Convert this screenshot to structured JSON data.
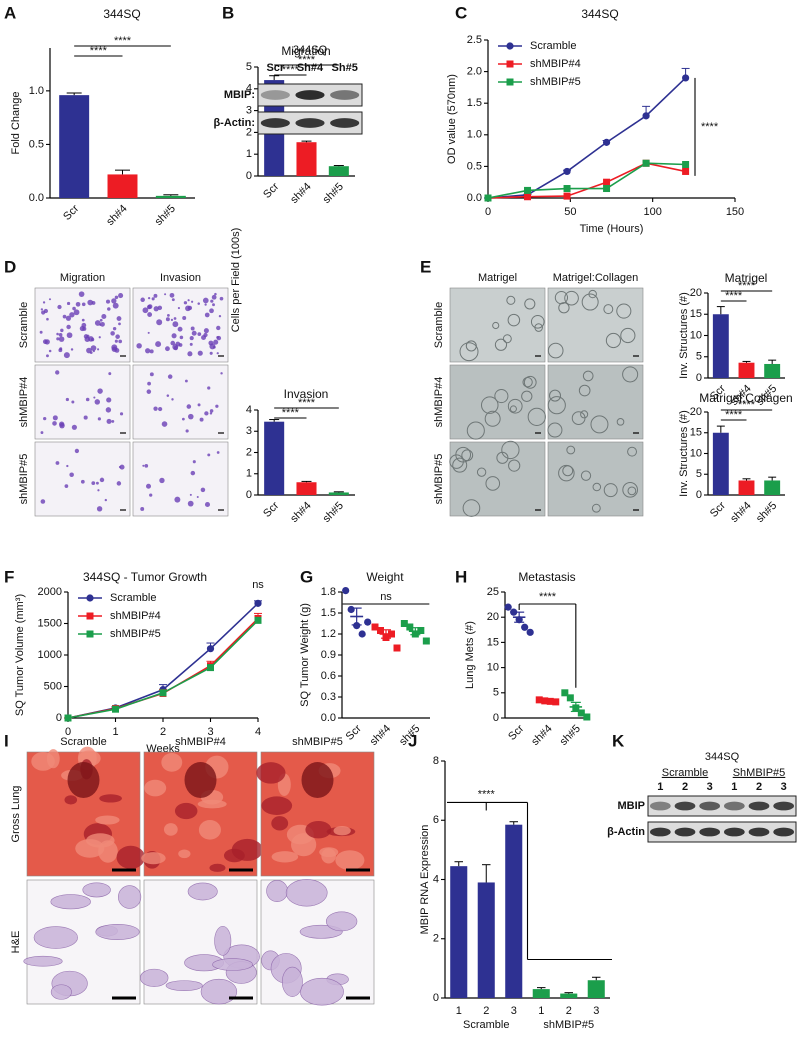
{
  "chart_data": [
    {
      "panel": "A",
      "type": "bar",
      "title": "344SQ",
      "ylabel": "Fold  Change",
      "categories": [
        "Scr",
        "sh#4",
        "sh#5"
      ],
      "values": [
        0.96,
        0.22,
        0.02
      ],
      "errors": [
        0.02,
        0.04,
        0.01
      ],
      "colors": [
        "#2e3192",
        "#ed1c24",
        "#1b9e4b"
      ],
      "ylim": [
        0,
        1.4
      ],
      "yticks": [
        {
          "value": 0,
          "label": "0.0"
        },
        {
          "value": 0.5,
          "label": "0.5"
        },
        {
          "value": 1,
          "label": "1.0"
        }
      ],
      "xtick_rotation": 45,
      "annotations": [
        "****",
        "****"
      ]
    },
    {
      "panel": "C",
      "type": "line",
      "title": "344SQ",
      "xlabel": "Time (Hours)",
      "ylabel": "OD value (570nm)",
      "x": [
        0,
        24,
        48,
        72,
        96,
        120
      ],
      "series": [
        {
          "name": "Scramble",
          "color": "#2e3192",
          "marker": "circle",
          "values": [
            0,
            0.05,
            0.42,
            0.88,
            1.3,
            1.9
          ],
          "errors": [
            0,
            0.01,
            0.02,
            0.03,
            0.15,
            0.15
          ]
        },
        {
          "name": "shMBIP#4",
          "color": "#ed1c24",
          "marker": "square",
          "values": [
            0,
            0.02,
            0.03,
            0.25,
            0.55,
            0.42
          ]
        },
        {
          "name": "shMBIP#5",
          "color": "#1b9e4b",
          "marker": "square",
          "values": [
            0,
            0.12,
            0.15,
            0.15,
            0.55,
            0.53
          ]
        }
      ],
      "xlim": [
        0,
        150
      ],
      "xticks": [
        0,
        50,
        100,
        150
      ],
      "ylim": [
        0,
        2.5
      ],
      "yticks": [
        {
          "value": 0,
          "label": "0.0"
        },
        {
          "value": 0.5,
          "label": "0.5"
        },
        {
          "value": 1,
          "label": "1.0"
        },
        {
          "value": 1.5,
          "label": "1.5"
        },
        {
          "value": 2,
          "label": "2.0"
        },
        {
          "value": 2.5,
          "label": "2.5"
        }
      ],
      "legend": "upper left",
      "annotations": [
        "****"
      ]
    },
    {
      "type": "bar",
      "title": "Migration",
      "ylabel": "Cells per Field (100s)",
      "categories": [
        "Scr",
        "sh#4",
        "sh#5"
      ],
      "values": [
        4.4,
        1.55,
        0.45
      ],
      "errors": [
        0.2,
        0.05,
        0.03
      ],
      "colors": [
        "#2e3192",
        "#ed1c24",
        "#1b9e4b"
      ],
      "ylim": [
        0,
        5
      ],
      "yticks": [
        0,
        1,
        2,
        3,
        4,
        5
      ],
      "xtick_rotation": 45,
      "annotations": [
        "****",
        "****"
      ]
    },
    {
      "type": "bar",
      "title": "Invasion",
      "categories": [
        "Scr",
        "sh#4",
        "sh#5"
      ],
      "values": [
        3.45,
        0.6,
        0.12
      ],
      "errors": [
        0.1,
        0.04,
        0.03
      ],
      "colors": [
        "#2e3192",
        "#ed1c24",
        "#1b9e4b"
      ],
      "ylim": [
        0,
        4
      ],
      "yticks": [
        0,
        1,
        2,
        3,
        4
      ],
      "xtick_rotation": 45,
      "annotations": [
        "****",
        "****"
      ]
    },
    {
      "type": "bar",
      "title": "Matrigel",
      "ylabel": "Inv.  Structures (#)",
      "categories": [
        "Scr",
        "sh#4",
        "sh#5"
      ],
      "values": [
        15,
        3.6,
        3.3
      ],
      "errors": [
        1.8,
        0.3,
        0.9
      ],
      "colors": [
        "#2e3192",
        "#ed1c24",
        "#1b9e4b"
      ],
      "ylim": [
        0,
        20
      ],
      "yticks": [
        0,
        5,
        10,
        15,
        20
      ],
      "xtick_rotation": 45,
      "annotations": [
        "****",
        "****"
      ]
    },
    {
      "type": "bar",
      "title": "Matrigel:Collagen",
      "ylabel": "Inv.  Structures (#)",
      "categories": [
        "Scr",
        "sh#4",
        "sh#5"
      ],
      "values": [
        15,
        3.5,
        3.5
      ],
      "errors": [
        1.6,
        0.4,
        0.8
      ],
      "colors": [
        "#2e3192",
        "#ed1c24",
        "#1b9e4b"
      ],
      "ylim": [
        0,
        20
      ],
      "yticks": [
        0,
        5,
        10,
        15,
        20
      ],
      "xtick_rotation": 45,
      "annotations": [
        "****",
        "****"
      ]
    },
    {
      "panel": "F",
      "type": "line",
      "title": "344SQ - Tumor Growth",
      "xlabel": "Weeks",
      "ylabel": "SQ Tumor Volume  (mm³)",
      "x": [
        0,
        1,
        2,
        3,
        4
      ],
      "series": [
        {
          "name": "Scramble",
          "color": "#2e3192",
          "marker": "circle",
          "values": [
            0,
            160,
            450,
            1100,
            1820
          ],
          "errors": [
            0,
            20,
            80,
            90,
            40
          ]
        },
        {
          "name": "shMBIP#4",
          "color": "#ed1c24",
          "marker": "square",
          "values": [
            0,
            150,
            390,
            830,
            1580
          ],
          "errors": [
            0,
            20,
            60,
            70,
            80
          ]
        },
        {
          "name": "shMBIP#5",
          "color": "#1b9e4b",
          "marker": "square",
          "values": [
            0,
            140,
            400,
            800,
            1550
          ]
        }
      ],
      "xlim": [
        0,
        4
      ],
      "xticks": [
        0,
        1,
        2,
        3,
        4
      ],
      "ylim": [
        0,
        2000
      ],
      "yticks": [
        0,
        500,
        1000,
        1500,
        2000
      ],
      "legend": "upper left",
      "annotations": [
        "ns"
      ]
    },
    {
      "panel": "G",
      "type": "dot",
      "title": "Weight",
      "ylabel": "SQ Tumor Weight (g)",
      "categories": [
        "Scr",
        "sh#4",
        "sh#5"
      ],
      "points": [
        [
          1.82,
          1.55,
          1.32,
          1.2,
          1.37
        ],
        [
          1.3,
          1.25,
          1.15,
          1.2,
          1.0
        ],
        [
          1.35,
          1.3,
          1.2,
          1.25,
          1.1
        ]
      ],
      "means": [
        1.45,
        1.2,
        1.24
      ],
      "errors": [
        0.12,
        0.06,
        0.05
      ],
      "colors": [
        "#2e3192",
        "#ed1c24",
        "#1b9e4b"
      ],
      "markers": [
        "circle",
        "square",
        "square"
      ],
      "ylim": [
        0,
        1.8
      ],
      "yticks": [
        {
          "value": 0,
          "label": "0.0"
        },
        {
          "value": 0.3,
          "label": "0.3"
        },
        {
          "value": 0.6,
          "label": "0.6"
        },
        {
          "value": 0.9,
          "label": "0.9"
        },
        {
          "value": 1.2,
          "label": "1.2"
        },
        {
          "value": 1.5,
          "label": "1.5"
        },
        {
          "value": 1.8,
          "label": "1.8"
        }
      ],
      "xtick_rotation": 45,
      "annotations": [
        "ns"
      ]
    },
    {
      "panel": "H",
      "type": "dot",
      "title": "Metastasis",
      "ylabel": "Lung  Mets (#)",
      "categories": [
        "Scr",
        "sh#4",
        "sh#5"
      ],
      "points": [
        [
          22,
          21,
          19.5,
          18,
          17
        ],
        [
          3.6,
          3.4,
          3.3,
          3.2
        ],
        [
          5,
          4,
          2,
          1,
          0.2
        ]
      ],
      "means": [
        20,
        3.4,
        2.2
      ],
      "errors": [
        1,
        0.15,
        0.9
      ],
      "colors": [
        "#2e3192",
        "#ed1c24",
        "#1b9e4b"
      ],
      "markers": [
        "circle",
        "square",
        "square"
      ],
      "ylim": [
        0,
        25
      ],
      "yticks": [
        0,
        5,
        10,
        15,
        20,
        25
      ],
      "xtick_rotation": 45,
      "annotations": [
        "****"
      ]
    },
    {
      "panel": "J",
      "type": "bar",
      "ylabel": "MBIP RNA Expression",
      "categories": [
        "1",
        "2",
        "3",
        "1",
        "2",
        "3"
      ],
      "group_labels": [
        "Scramble",
        "shMBIP#5"
      ],
      "values": [
        4.45,
        3.9,
        5.85,
        0.3,
        0.15,
        0.6
      ],
      "errors": [
        0.15,
        0.6,
        0.1,
        0.05,
        0.03,
        0.1
      ],
      "colors": [
        "#2e3192",
        "#2e3192",
        "#2e3192",
        "#1b9e4b",
        "#1b9e4b",
        "#1b9e4b"
      ],
      "ylim": [
        0,
        8
      ],
      "yticks": [
        0,
        2,
        4,
        6,
        8
      ],
      "annotations": [
        "****"
      ]
    }
  ],
  "blots": [
    {
      "panel": "B",
      "title": "344SQ",
      "lanes": [
        "Scr",
        "Sh#4",
        "Sh#5"
      ],
      "rows": [
        "MBIP:",
        "β-Actin:"
      ]
    },
    {
      "panel": "K",
      "title": "344SQ",
      "groups": [
        "Scramble",
        "ShMBIP#5"
      ],
      "lanes": [
        "1",
        "2",
        "3",
        "1",
        "2",
        "3"
      ],
      "rows": [
        "MBIP",
        "β-Actin"
      ]
    }
  ],
  "images": [
    {
      "panel": "D",
      "columns": [
        "Migration",
        "Invasion"
      ],
      "rows": [
        "Scramble",
        "shMBIP#4",
        "shMBIP#5"
      ]
    },
    {
      "panel": "E",
      "columns": [
        "Matrigel",
        "Matrigel:Collagen"
      ],
      "rows": [
        "Scramble",
        "shMBIP#4",
        "shMBIP#5"
      ]
    },
    {
      "panel": "I",
      "columns": [
        "Scramble",
        "shMBIP#4",
        "shMBIP#5"
      ],
      "rows": [
        "Gross Lung",
        "H&E"
      ]
    }
  ]
}
